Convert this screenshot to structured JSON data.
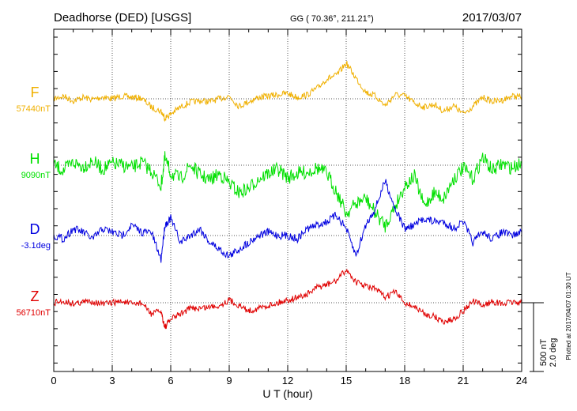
{
  "header": {
    "station": "Deadhorse (DED)  [USGS]",
    "coords": "GG ( 70.36°, 211.21°)",
    "date": "2017/03/07"
  },
  "footer": {
    "plotted": "Plotted at 2017/04/07 01:30 UT"
  },
  "scale": {
    "nt": "500 nT",
    "deg": "2.0 deg"
  },
  "chart_data": {
    "type": "line",
    "xlabel": "U T (hour)",
    "xlim": [
      0,
      24
    ],
    "xticks": [
      0,
      3,
      6,
      9,
      12,
      15,
      18,
      21,
      24
    ],
    "xtick_labels": [
      "0",
      "3",
      "6",
      "9",
      "12",
      "15",
      "18",
      "21",
      "24"
    ],
    "grid": true,
    "scale_bar": {
      "nT": 500,
      "deg": 2.0
    },
    "series": [
      {
        "name": "F",
        "baseline": "57440nT",
        "color": "#f0b000",
        "unit": "nT",
        "x": [
          0,
          0.5,
          1,
          1.5,
          2,
          2.5,
          3,
          3.5,
          4,
          4.5,
          5,
          5.5,
          5.7,
          6,
          6.5,
          7,
          7.5,
          8,
          8.5,
          9,
          9.5,
          10,
          10.5,
          11,
          11.5,
          12,
          12.5,
          13,
          13.5,
          14,
          14.5,
          15,
          15.5,
          16,
          16.5,
          17,
          17.5,
          18,
          18.5,
          19,
          19.5,
          20,
          20.5,
          21,
          21.5,
          22,
          22.5,
          23,
          23.5,
          24
        ],
        "y": [
          0,
          20,
          -15,
          10,
          -5,
          15,
          0,
          20,
          10,
          5,
          -60,
          -90,
          -140,
          -110,
          -60,
          -25,
          -15,
          -20,
          0,
          20,
          -55,
          -20,
          10,
          20,
          30,
          40,
          10,
          30,
          75,
          145,
          170,
          260,
          150,
          50,
          20,
          -50,
          30,
          20,
          -30,
          -60,
          -40,
          -90,
          -50,
          -110,
          -55,
          10,
          -20,
          -10,
          20,
          15
        ]
      },
      {
        "name": "H",
        "baseline": "9090nT",
        "color": "#00e000",
        "unit": "nT",
        "x": [
          0,
          0.5,
          1,
          1.5,
          2,
          2.5,
          3,
          3.5,
          4,
          4.5,
          5,
          5.5,
          5.7,
          6,
          6.5,
          7,
          7.5,
          8,
          8.5,
          9,
          9.5,
          10,
          10.5,
          11,
          11.5,
          12,
          12.5,
          13,
          13.5,
          14,
          14.5,
          15,
          15.5,
          16,
          16.5,
          17,
          17.5,
          18,
          18.5,
          19,
          19.5,
          20,
          20.5,
          21,
          21.5,
          22,
          22.5,
          23,
          23.5,
          24
        ],
        "y": [
          0,
          -40,
          20,
          -10,
          30,
          -30,
          10,
          0,
          -20,
          20,
          -40,
          -150,
          50,
          -60,
          -100,
          0,
          -70,
          -110,
          -60,
          -130,
          -200,
          -170,
          -100,
          -60,
          -30,
          -90,
          -60,
          -50,
          -20,
          -60,
          -190,
          -350,
          -280,
          -240,
          -350,
          -440,
          -300,
          -150,
          -80,
          -300,
          -200,
          -240,
          -100,
          -20,
          -100,
          60,
          -40,
          10,
          -20,
          20
        ]
      },
      {
        "name": "D",
        "baseline": "-3.1deg",
        "color": "#0000e0",
        "unit": "deg",
        "x": [
          0,
          0.5,
          1,
          1.5,
          2,
          2.5,
          3,
          3.5,
          4,
          4.5,
          5,
          5.5,
          5.7,
          6,
          6.5,
          7,
          7.5,
          8,
          8.5,
          9,
          9.5,
          10,
          10.5,
          11,
          11.5,
          12,
          12.5,
          13,
          13.5,
          14,
          14.5,
          15,
          15.5,
          16,
          16.5,
          17,
          17.5,
          18,
          18.5,
          19,
          19.5,
          20,
          20.5,
          21,
          21.5,
          22,
          22.5,
          23,
          23.5,
          24
        ],
        "y": [
          0,
          -0.1,
          0.2,
          0.1,
          -0.1,
          0.2,
          0.1,
          0,
          0.3,
          0.1,
          0.1,
          -0.7,
          0.3,
          0.5,
          -0.2,
          0,
          0.2,
          -0.2,
          -0.4,
          -0.6,
          -0.4,
          -0.2,
          0,
          0.1,
          0,
          0,
          -0.1,
          0.2,
          0.3,
          0.4,
          0.6,
          0.2,
          -0.6,
          0.3,
          0.8,
          1.6,
          0.8,
          0.2,
          0.3,
          0.5,
          0.4,
          0.4,
          0.2,
          0.4,
          -0.2,
          0.1,
          -0.1,
          0.1,
          0,
          0.1
        ]
      },
      {
        "name": "Z",
        "baseline": "56710nT",
        "color": "#e00000",
        "unit": "nT",
        "x": [
          0,
          0.5,
          1,
          1.5,
          2,
          2.5,
          3,
          3.5,
          4,
          4.5,
          5,
          5.5,
          5.7,
          6,
          6.5,
          7,
          7.5,
          8,
          8.5,
          9,
          9.5,
          10,
          10.5,
          11,
          11.5,
          12,
          12.5,
          13,
          13.5,
          14,
          14.5,
          15,
          15.5,
          16,
          16.5,
          17,
          17.5,
          18,
          18.5,
          19,
          19.5,
          20,
          20.5,
          21,
          21.5,
          22,
          22.5,
          23,
          23.5,
          24
        ],
        "y": [
          0,
          10,
          -5,
          5,
          10,
          -10,
          0,
          10,
          -10,
          0,
          -80,
          -60,
          -180,
          -120,
          -80,
          -40,
          -40,
          -30,
          -20,
          20,
          -20,
          -60,
          -40,
          -20,
          0,
          20,
          40,
          60,
          110,
          130,
          160,
          240,
          150,
          120,
          100,
          40,
          80,
          0,
          -30,
          -80,
          -100,
          -140,
          -120,
          -60,
          10,
          -20,
          10,
          -10,
          5,
          0
        ]
      }
    ]
  }
}
